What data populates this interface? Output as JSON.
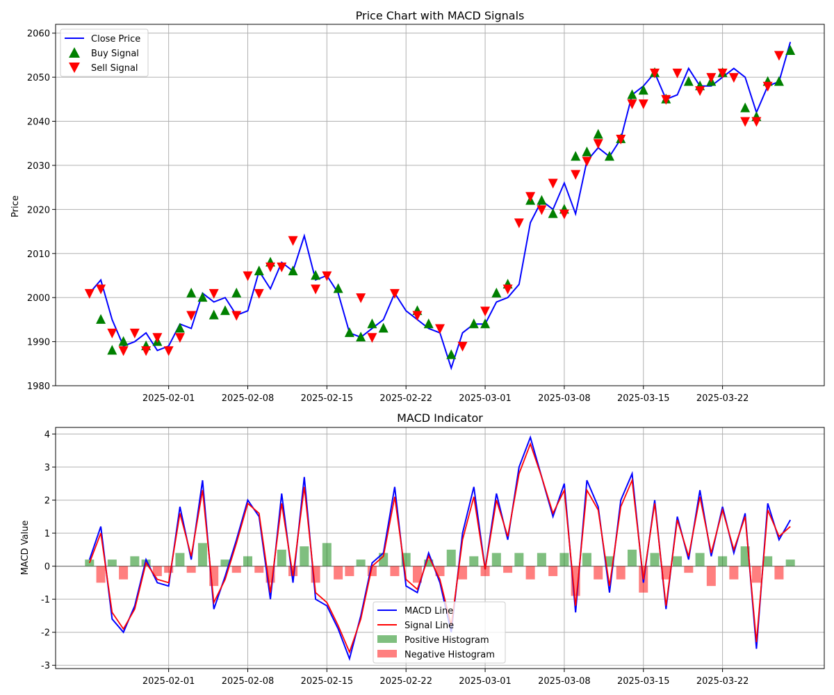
{
  "chart_data": [
    {
      "type": "line",
      "title": "Price Chart with MACD Signals",
      "xlabel": "",
      "ylabel": "Price",
      "x_ticks": [
        "2025-02-01",
        "2025-02-08",
        "2025-02-15",
        "2025-02-22",
        "2025-03-01",
        "2025-03-08",
        "2025-03-15",
        "2025-03-22"
      ],
      "y_ticks": [
        1980,
        1990,
        2000,
        2010,
        2020,
        2030,
        2040,
        2050,
        2060
      ],
      "xlim": [
        "2025-01-22",
        "2025-03-31"
      ],
      "ylim": [
        1980,
        2062
      ],
      "grid": true,
      "legend_position": "top-left",
      "colors": {
        "close": "#0000ff",
        "buy": "#008000",
        "sell": "#ff0000"
      },
      "series": [
        {
          "name": "Close Price",
          "x": [
            "2025-01-25",
            "2025-01-26",
            "2025-01-27",
            "2025-01-28",
            "2025-01-29",
            "2025-01-30",
            "2025-01-31",
            "2025-02-01",
            "2025-02-02",
            "2025-02-03",
            "2025-02-04",
            "2025-02-05",
            "2025-02-06",
            "2025-02-07",
            "2025-02-08",
            "2025-02-09",
            "2025-02-10",
            "2025-02-11",
            "2025-02-12",
            "2025-02-13",
            "2025-02-14",
            "2025-02-15",
            "2025-02-16",
            "2025-02-17",
            "2025-02-18",
            "2025-02-19",
            "2025-02-20",
            "2025-02-21",
            "2025-02-22",
            "2025-02-23",
            "2025-02-24",
            "2025-02-25",
            "2025-02-26",
            "2025-02-27",
            "2025-02-28",
            "2025-03-01",
            "2025-03-02",
            "2025-03-03",
            "2025-03-04",
            "2025-03-05",
            "2025-03-06",
            "2025-03-07",
            "2025-03-08",
            "2025-03-09",
            "2025-03-10",
            "2025-03-11",
            "2025-03-12",
            "2025-03-13",
            "2025-03-14",
            "2025-03-15",
            "2025-03-16",
            "2025-03-17",
            "2025-03-18",
            "2025-03-19",
            "2025-03-20",
            "2025-03-21",
            "2025-03-22",
            "2025-03-23",
            "2025-03-24",
            "2025-03-25",
            "2025-03-26",
            "2025-03-27",
            "2025-03-28"
          ],
          "values": [
            2001,
            2004,
            1995,
            1989,
            1990,
            1992,
            1988,
            1989,
            1994,
            1993,
            2001,
            1999,
            2000,
            1996,
            1997,
            2006,
            2002,
            2008,
            2006,
            2014,
            2004,
            2005,
            2001,
            1992,
            1991,
            1993,
            1995,
            2001,
            1997,
            1995,
            1993,
            1992,
            1984,
            1992,
            1994,
            1994,
            1999,
            2000,
            2003,
            2017,
            2022,
            2020,
            2026,
            2019,
            2031,
            2034,
            2032,
            2036,
            2046,
            2048,
            2051,
            2045,
            2046,
            2052,
            2048,
            2048,
            2050,
            2052,
            2050,
            2042,
            2048,
            2049,
            2058
          ]
        },
        {
          "name": "Buy Signal",
          "x": [
            "2025-01-26",
            "2025-01-27",
            "2025-01-28",
            "2025-01-30",
            "2025-01-31",
            "2025-02-02",
            "2025-02-03",
            "2025-02-04",
            "2025-02-05",
            "2025-02-06",
            "2025-02-07",
            "2025-02-09",
            "2025-02-10",
            "2025-02-12",
            "2025-02-14",
            "2025-02-16",
            "2025-02-17",
            "2025-02-18",
            "2025-02-19",
            "2025-02-20",
            "2025-02-23",
            "2025-02-24",
            "2025-02-26",
            "2025-02-28",
            "2025-03-01",
            "2025-03-02",
            "2025-03-03",
            "2025-03-05",
            "2025-03-06",
            "2025-03-07",
            "2025-03-08",
            "2025-03-09",
            "2025-03-10",
            "2025-03-11",
            "2025-03-12",
            "2025-03-13",
            "2025-03-14",
            "2025-03-15",
            "2025-03-16",
            "2025-03-17",
            "2025-03-19",
            "2025-03-20",
            "2025-03-21",
            "2025-03-22",
            "2025-03-24",
            "2025-03-25",
            "2025-03-26",
            "2025-03-27",
            "2025-03-28"
          ],
          "values": [
            1995,
            1988,
            1990,
            1989,
            1990,
            1993,
            2001,
            2000,
            1996,
            1997,
            2001,
            2006,
            2008,
            2006,
            2005,
            2002,
            1992,
            1991,
            1994,
            1993,
            1997,
            1994,
            1987,
            1994,
            1994,
            2001,
            2003,
            2022,
            2022,
            2019,
            2020,
            2032,
            2033,
            2037,
            2032,
            2036,
            2046,
            2047,
            2051,
            2045,
            2049,
            2048,
            2049,
            2051,
            2043,
            2041,
            2049,
            2049,
            2056
          ]
        },
        {
          "name": "Sell Signal",
          "x": [
            "2025-01-25",
            "2025-01-26",
            "2025-01-27",
            "2025-01-28",
            "2025-01-29",
            "2025-01-30",
            "2025-01-31",
            "2025-02-01",
            "2025-02-02",
            "2025-02-03",
            "2025-02-05",
            "2025-02-07",
            "2025-02-08",
            "2025-02-09",
            "2025-02-10",
            "2025-02-11",
            "2025-02-12",
            "2025-02-14",
            "2025-02-15",
            "2025-02-18",
            "2025-02-19",
            "2025-02-21",
            "2025-02-23",
            "2025-02-25",
            "2025-02-27",
            "2025-03-01",
            "2025-03-03",
            "2025-03-04",
            "2025-03-05",
            "2025-03-06",
            "2025-03-07",
            "2025-03-08",
            "2025-03-09",
            "2025-03-10",
            "2025-03-11",
            "2025-03-13",
            "2025-03-14",
            "2025-03-15",
            "2025-03-16",
            "2025-03-17",
            "2025-03-18",
            "2025-03-20",
            "2025-03-21",
            "2025-03-22",
            "2025-03-23",
            "2025-03-24",
            "2025-03-25",
            "2025-03-26",
            "2025-03-27"
          ],
          "values": [
            2001,
            2002,
            1992,
            1988,
            1992,
            1988,
            1991,
            1988,
            1991,
            1996,
            2001,
            1996,
            2005,
            2001,
            2007,
            2007,
            2013,
            2002,
            2005,
            2000,
            1991,
            2001,
            1996,
            1993,
            1989,
            1997,
            2002,
            2017,
            2023,
            2020,
            2026,
            2019,
            2028,
            2031,
            2035,
            2036,
            2044,
            2044,
            2051,
            2045,
            2051,
            2047,
            2050,
            2051,
            2050,
            2040,
            2040,
            2048,
            2055
          ]
        }
      ]
    },
    {
      "type": "line",
      "title": "MACD Indicator",
      "xlabel": "",
      "ylabel": "MACD Value",
      "x_ticks": [
        "2025-02-01",
        "2025-02-08",
        "2025-02-15",
        "2025-02-22",
        "2025-03-01",
        "2025-03-08",
        "2025-03-15",
        "2025-03-22"
      ],
      "y_ticks": [
        -3,
        -2,
        -1,
        0,
        1,
        2,
        3,
        4
      ],
      "xlim": [
        "2025-01-22",
        "2025-03-31"
      ],
      "ylim": [
        -3.1,
        4.2
      ],
      "grid": true,
      "legend_position": "bottom-center",
      "colors": {
        "macd": "#0000ff",
        "signal": "#ff0000",
        "positive": "#008000",
        "negative": "#ff0000"
      },
      "series": [
        {
          "name": "MACD Line",
          "x": [
            "2025-01-25",
            "2025-01-26",
            "2025-01-27",
            "2025-01-28",
            "2025-01-29",
            "2025-01-30",
            "2025-01-31",
            "2025-02-01",
            "2025-02-02",
            "2025-02-03",
            "2025-02-04",
            "2025-02-05",
            "2025-02-06",
            "2025-02-07",
            "2025-02-08",
            "2025-02-09",
            "2025-02-10",
            "2025-02-11",
            "2025-02-12",
            "2025-02-13",
            "2025-02-14",
            "2025-02-15",
            "2025-02-16",
            "2025-02-17",
            "2025-02-18",
            "2025-02-19",
            "2025-02-20",
            "2025-02-21",
            "2025-02-22",
            "2025-02-23",
            "2025-02-24",
            "2025-02-25",
            "2025-02-26",
            "2025-02-27",
            "2025-02-28",
            "2025-03-01",
            "2025-03-02",
            "2025-03-03",
            "2025-03-04",
            "2025-03-05",
            "2025-03-06",
            "2025-03-07",
            "2025-03-08",
            "2025-03-09",
            "2025-03-10",
            "2025-03-11",
            "2025-03-12",
            "2025-03-13",
            "2025-03-14",
            "2025-03-15",
            "2025-03-16",
            "2025-03-17",
            "2025-03-18",
            "2025-03-19",
            "2025-03-20",
            "2025-03-21",
            "2025-03-22",
            "2025-03-23",
            "2025-03-24",
            "2025-03-25",
            "2025-03-26",
            "2025-03-27",
            "2025-03-28"
          ],
          "values": [
            0.2,
            1.2,
            -1.6,
            -2.0,
            -1.2,
            0.2,
            -0.5,
            -0.6,
            1.8,
            0.2,
            2.6,
            -1.3,
            -0.3,
            0.8,
            2.0,
            1.5,
            -1.0,
            2.2,
            -0.5,
            2.7,
            -1.0,
            -1.2,
            -1.9,
            -2.8,
            -1.5,
            0.1,
            0.4,
            2.4,
            -0.6,
            -0.8,
            0.4,
            -0.5,
            -2.0,
            1.0,
            2.4,
            -0.1,
            2.2,
            0.8,
            3.0,
            3.9,
            2.7,
            1.5,
            2.5,
            -1.4,
            2.6,
            1.8,
            -0.8,
            2.0,
            2.8,
            -0.5,
            2.0,
            -1.3,
            1.5,
            0.2,
            2.3,
            0.3,
            1.8,
            0.4,
            1.6,
            -2.5,
            1.9,
            0.8,
            1.4
          ]
        },
        {
          "name": "Signal Line",
          "x": [
            "2025-01-25",
            "2025-01-26",
            "2025-01-27",
            "2025-01-28",
            "2025-01-29",
            "2025-01-30",
            "2025-01-31",
            "2025-02-01",
            "2025-02-02",
            "2025-02-03",
            "2025-02-04",
            "2025-02-05",
            "2025-02-06",
            "2025-02-07",
            "2025-02-08",
            "2025-02-09",
            "2025-02-10",
            "2025-02-11",
            "2025-02-12",
            "2025-02-13",
            "2025-02-14",
            "2025-02-15",
            "2025-02-16",
            "2025-02-17",
            "2025-02-18",
            "2025-02-19",
            "2025-02-20",
            "2025-02-21",
            "2025-02-22",
            "2025-02-23",
            "2025-02-24",
            "2025-02-25",
            "2025-02-26",
            "2025-02-27",
            "2025-02-28",
            "2025-03-01",
            "2025-03-02",
            "2025-03-03",
            "2025-03-04",
            "2025-03-05",
            "2025-03-06",
            "2025-03-07",
            "2025-03-08",
            "2025-03-09",
            "2025-03-10",
            "2025-03-11",
            "2025-03-12",
            "2025-03-13",
            "2025-03-14",
            "2025-03-15",
            "2025-03-16",
            "2025-03-17",
            "2025-03-18",
            "2025-03-19",
            "2025-03-20",
            "2025-03-21",
            "2025-03-22",
            "2025-03-23",
            "2025-03-24",
            "2025-03-25",
            "2025-03-26",
            "2025-03-27",
            "2025-03-28"
          ],
          "values": [
            0.1,
            1.0,
            -1.4,
            -1.9,
            -1.3,
            0.1,
            -0.4,
            -0.5,
            1.6,
            0.3,
            2.3,
            -1.1,
            -0.4,
            0.7,
            1.9,
            1.6,
            -0.8,
            1.9,
            -0.3,
            2.4,
            -0.8,
            -1.1,
            -1.8,
            -2.6,
            -1.6,
            0.0,
            0.3,
            2.1,
            -0.4,
            -0.7,
            0.3,
            -0.4,
            -1.8,
            0.8,
            2.1,
            -0.1,
            2.0,
            0.9,
            2.8,
            3.7,
            2.7,
            1.6,
            2.3,
            -1.2,
            2.3,
            1.7,
            -0.6,
            1.8,
            2.6,
            -0.4,
            1.9,
            -1.2,
            1.4,
            0.3,
            2.1,
            0.4,
            1.7,
            0.5,
            1.5,
            -2.3,
            1.7,
            0.9,
            1.2
          ]
        }
      ],
      "histogram": {
        "x": [
          "2025-01-25",
          "2025-01-26",
          "2025-01-27",
          "2025-01-28",
          "2025-01-29",
          "2025-01-30",
          "2025-01-31",
          "2025-02-01",
          "2025-02-02",
          "2025-02-03",
          "2025-02-04",
          "2025-02-05",
          "2025-02-06",
          "2025-02-07",
          "2025-02-08",
          "2025-02-09",
          "2025-02-10",
          "2025-02-11",
          "2025-02-12",
          "2025-02-13",
          "2025-02-14",
          "2025-02-15",
          "2025-02-16",
          "2025-02-17",
          "2025-02-18",
          "2025-02-19",
          "2025-02-20",
          "2025-02-21",
          "2025-02-22",
          "2025-02-23",
          "2025-02-24",
          "2025-02-25",
          "2025-02-26",
          "2025-02-27",
          "2025-02-28",
          "2025-03-01",
          "2025-03-02",
          "2025-03-03",
          "2025-03-04",
          "2025-03-05",
          "2025-03-06",
          "2025-03-07",
          "2025-03-08",
          "2025-03-09",
          "2025-03-10",
          "2025-03-11",
          "2025-03-12",
          "2025-03-13",
          "2025-03-14",
          "2025-03-15",
          "2025-03-16",
          "2025-03-17",
          "2025-03-18",
          "2025-03-19",
          "2025-03-20",
          "2025-03-21",
          "2025-03-22",
          "2025-03-23",
          "2025-03-24",
          "2025-03-25",
          "2025-03-26",
          "2025-03-27",
          "2025-03-28"
        ],
        "values": [
          0.2,
          -0.5,
          0.2,
          -0.4,
          0.3,
          0.2,
          -0.3,
          -0.2,
          0.4,
          -0.2,
          0.7,
          -0.6,
          0.2,
          -0.2,
          0.3,
          -0.2,
          -0.5,
          0.5,
          -0.3,
          0.6,
          -0.5,
          0.7,
          -0.4,
          -0.3,
          0.2,
          -0.3,
          0.4,
          -0.3,
          0.4,
          -0.5,
          0.2,
          -0.3,
          0.5,
          -0.4,
          0.3,
          -0.3,
          0.4,
          -0.2,
          0.4,
          -0.4,
          0.4,
          -0.3,
          0.4,
          -0.9,
          0.4,
          -0.4,
          0.3,
          -0.4,
          0.5,
          -0.8,
          0.4,
          -0.4,
          0.3,
          -0.2,
          0.4,
          -0.6,
          0.3,
          -0.4,
          0.6,
          -0.5,
          0.3,
          -0.4,
          0.2
        ]
      }
    }
  ]
}
